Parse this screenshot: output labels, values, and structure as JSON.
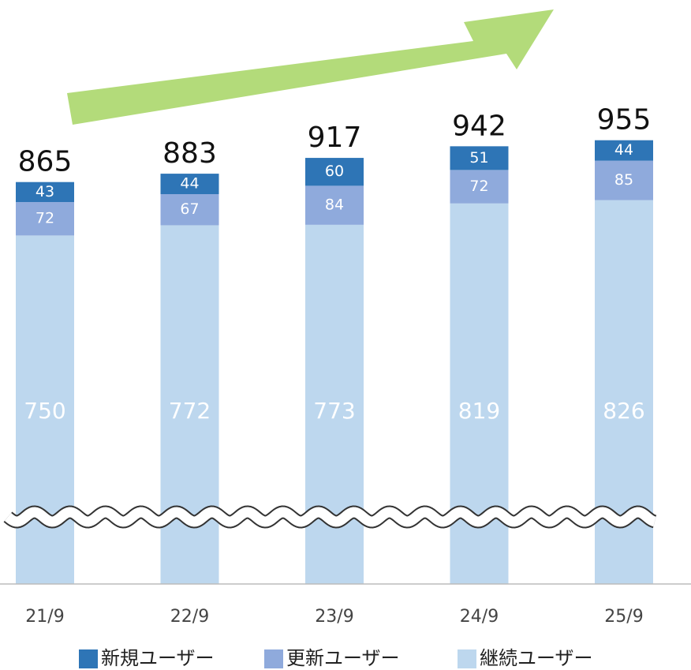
{
  "chart_data": {
    "type": "stacked_bar",
    "categories": [
      "21/9",
      "22/9",
      "23/9",
      "24/9",
      "25/9"
    ],
    "series": [
      {
        "name": "継続ユーザー",
        "color": "#bdd7ee",
        "values": [
          750,
          772,
          773,
          819,
          826
        ]
      },
      {
        "name": "更新ユーザー",
        "color": "#8faadc",
        "values": [
          72,
          67,
          84,
          72,
          85
        ]
      },
      {
        "name": "新規ユーザー",
        "color": "#2e75b6",
        "values": [
          43,
          44,
          60,
          51,
          44
        ]
      }
    ],
    "totals": [
      865,
      883,
      917,
      942,
      955
    ],
    "ylim": [
      0,
      1250
    ],
    "axis_break": true
  }
}
